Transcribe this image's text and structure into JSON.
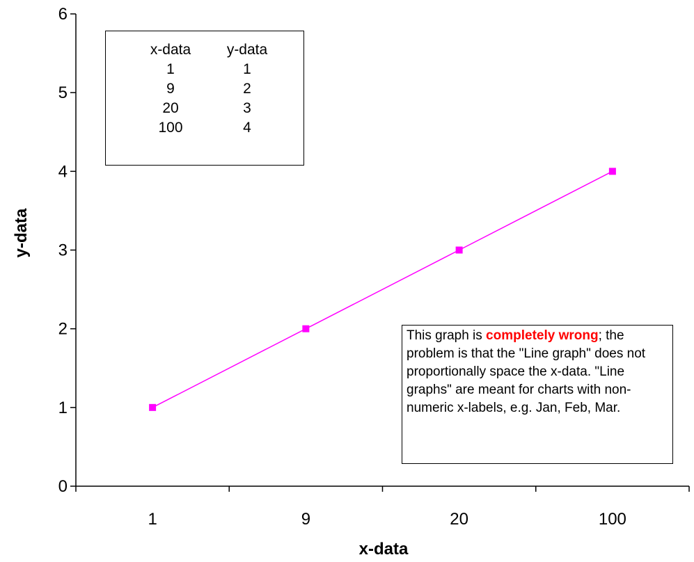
{
  "chart_data": {
    "type": "line",
    "title": "",
    "xlabel": "x-data",
    "ylabel": "y-data",
    "categories": [
      "1",
      "9",
      "20",
      "100"
    ],
    "series": [
      {
        "values": [
          1,
          2,
          3,
          4
        ],
        "color": "#ff00ff",
        "marker": "square"
      }
    ],
    "ylim": [
      0,
      6
    ],
    "yticks": [
      0,
      1,
      2,
      3,
      4,
      5,
      6
    ],
    "grid": false,
    "legend": "none"
  },
  "data_table": {
    "headers": [
      "x-data",
      "y-data"
    ],
    "rows": [
      [
        "1",
        "1"
      ],
      [
        "9",
        "2"
      ],
      [
        "20",
        "3"
      ],
      [
        "100",
        "4"
      ]
    ]
  },
  "annotation": {
    "prefix": "This graph is ",
    "emphasis": "completely wrong",
    "suffix": "; the problem is that the \"Line graph\" does not proportionally space the x-data.  \"Line graphs\" are meant for charts with non-numeric x-labels, e.g. Jan, Feb, Mar."
  }
}
